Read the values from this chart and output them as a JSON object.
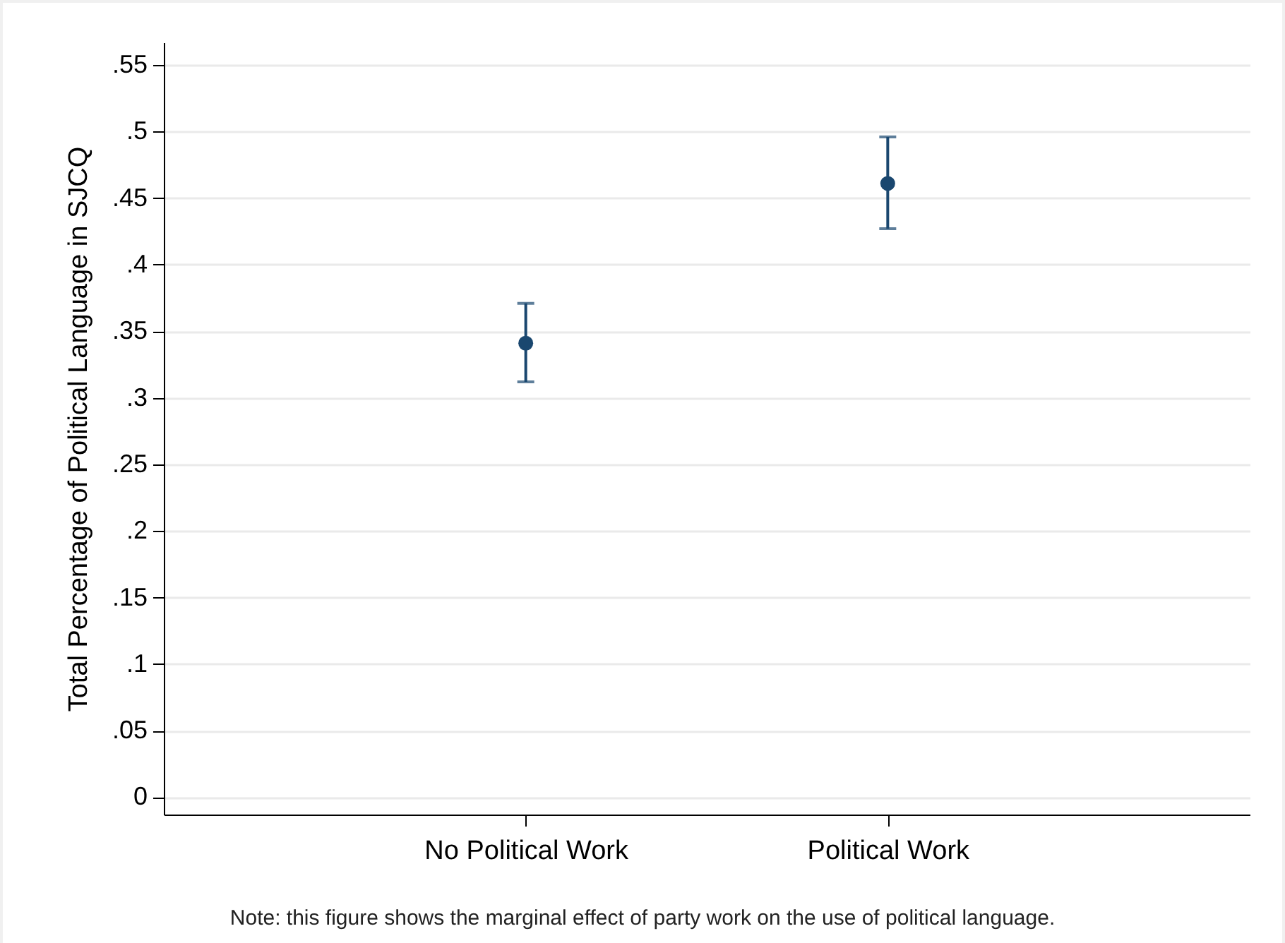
{
  "chart_data": {
    "type": "scatter",
    "ylabel": "Total Percentage of Political Language in SJCQ",
    "categories": [
      "No Political Work",
      "Political Work"
    ],
    "series": [
      {
        "color": "#1a476f",
        "values": [
          0.341,
          0.461
        ],
        "errors": [
          [
            0.312,
            0.371
          ],
          [
            0.427,
            0.496
          ]
        ]
      }
    ],
    "ylim": [
      -0.013,
      0.567
    ],
    "yticks": [
      0,
      {
        "value": 0.05,
        "label": ".05"
      },
      {
        "value": 0.1,
        "label": ".1"
      },
      {
        "value": 0.15,
        "label": ".15"
      },
      {
        "value": 0.2,
        "label": ".2"
      },
      {
        "value": 0.25,
        "label": ".25"
      },
      {
        "value": 0.3,
        "label": ".3"
      },
      {
        "value": 0.35,
        "label": ".35"
      },
      {
        "value": 0.4,
        "label": ".4"
      },
      {
        "value": 0.45,
        "label": ".45"
      },
      {
        "value": 0.5,
        "label": ".5"
      },
      {
        "value": 0.55,
        "label": ".55"
      }
    ],
    "grid": "y",
    "marker": "circle",
    "annotations": [
      "Note: this figure shows the marginal effect of party work on the use of political language."
    ]
  }
}
